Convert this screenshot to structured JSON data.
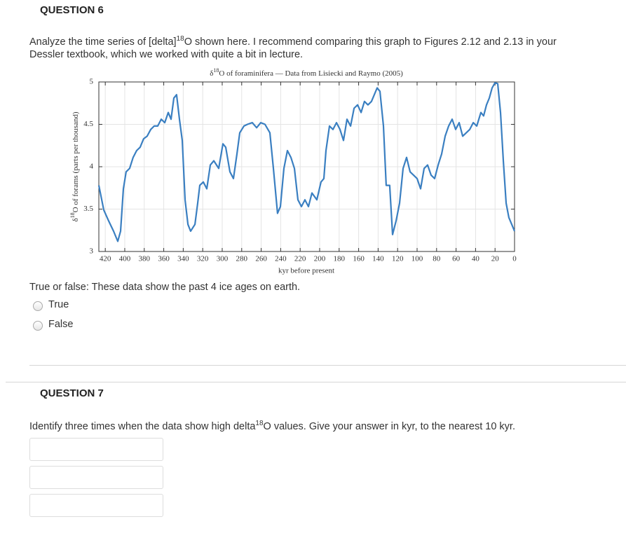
{
  "question6": {
    "heading": "QUESTION 6",
    "prompt_lead": "Analyze the time series of [delta]",
    "prompt_sup": "18",
    "prompt_rest": "O shown here.  I recommend comparing this graph to Figures 2.12 and 2.13 in your",
    "prompt_line2": "Dessler textbook, which we worked with quite a bit in lecture.",
    "statement": "True or false: These data show the past 4 ice ages on earth.",
    "options": [
      "True",
      "False"
    ]
  },
  "chart_data": {
    "type": "line",
    "title_parts": [
      "δ",
      "18",
      "O of foraminifera — Data from Lisiecki and Raymo (2005)"
    ],
    "ylabel_parts": [
      "δ",
      "18",
      "O of forams (parts per thousand)"
    ],
    "xlabel": "kyr before present",
    "color": "#3a7fc1",
    "grid": true,
    "xlim": [
      426.6,
      0
    ],
    "ylim": [
      3,
      5
    ],
    "xticks": [
      420,
      400,
      380,
      360,
      340,
      320,
      300,
      280,
      260,
      240,
      220,
      200,
      180,
      160,
      140,
      120,
      100,
      80,
      60,
      40,
      20,
      0
    ],
    "yticks": [
      3,
      3.5,
      4,
      4.5,
      5
    ],
    "x": [
      426.6,
      421.6,
      416.5,
      411.5,
      407.2,
      404.3,
      401.4,
      398.6,
      395,
      391.4,
      387.8,
      384.2,
      380.6,
      377,
      373.4,
      369.8,
      366.2,
      362.6,
      359,
      355.4,
      352.5,
      349.6,
      346.8,
      343.9,
      341,
      338.1,
      335.2,
      332.4,
      328,
      325.2,
      323,
      319.4,
      315.8,
      312.2,
      308.6,
      303.6,
      299.3,
      296.4,
      292.1,
      288.5,
      284.9,
      282,
      277.7,
      274.1,
      269.1,
      264.7,
      260.4,
      256.1,
      251.1,
      247.5,
      243.2,
      240.3,
      236.7,
      233.1,
      229.5,
      225.9,
      222.3,
      218.7,
      215.1,
      211.5,
      207.9,
      202.9,
      198.6,
      195.7,
      193.5,
      189.9,
      186.3,
      182.7,
      179.1,
      175.5,
      171.9,
      168.3,
      164.7,
      161.1,
      157.5,
      154,
      150.4,
      146.8,
      141,
      138.1,
      134.5,
      131.7,
      128.1,
      125.2,
      121.6,
      118,
      114.4,
      110.8,
      107.2,
      103.6,
      100,
      96.4,
      92.8,
      89.2,
      85.6,
      82,
      78.4,
      74.8,
      71.2,
      67.6,
      64,
      60.4,
      56.8,
      53.2,
      49.6,
      46,
      42.4,
      38.8,
      34.5,
      31.7,
      28.8,
      25.9,
      23,
      20.1,
      17.3,
      14.4,
      11.5,
      8.6,
      5.8,
      2.9,
      0
    ],
    "values": [
      3.78,
      3.49,
      3.36,
      3.24,
      3.12,
      3.24,
      3.74,
      3.94,
      3.98,
      4.11,
      4.19,
      4.23,
      4.33,
      4.36,
      4.44,
      4.48,
      4.48,
      4.56,
      4.52,
      4.64,
      4.56,
      4.81,
      4.85,
      4.56,
      4.31,
      3.61,
      3.32,
      3.24,
      3.32,
      3.57,
      3.78,
      3.82,
      3.74,
      4.02,
      4.07,
      3.98,
      4.27,
      4.23,
      3.94,
      3.86,
      4.15,
      4.4,
      4.48,
      4.5,
      4.52,
      4.46,
      4.52,
      4.5,
      4.4,
      3.98,
      3.45,
      3.53,
      3.98,
      4.19,
      4.11,
      3.98,
      3.61,
      3.53,
      3.61,
      3.53,
      3.69,
      3.61,
      3.82,
      3.86,
      4.19,
      4.48,
      4.44,
      4.52,
      4.44,
      4.31,
      4.56,
      4.48,
      4.69,
      4.73,
      4.64,
      4.77,
      4.73,
      4.77,
      4.93,
      4.89,
      4.48,
      3.78,
      3.78,
      3.2,
      3.36,
      3.57,
      3.98,
      4.11,
      3.94,
      3.9,
      3.86,
      3.74,
      3.98,
      4.02,
      3.9,
      3.86,
      4.02,
      4.15,
      4.36,
      4.48,
      4.56,
      4.44,
      4.52,
      4.36,
      4.4,
      4.44,
      4.52,
      4.48,
      4.64,
      4.6,
      4.73,
      4.81,
      4.93,
      4.99,
      4.98,
      4.64,
      4.07,
      3.57,
      3.4,
      3.32,
      3.24
    ]
  },
  "question7": {
    "heading": "QUESTION 7",
    "prompt_lead": "Identify three times when the data show high delta",
    "prompt_sup": "18",
    "prompt_rest": "O values.  Give your answer in kyr, to the nearest 10 kyr."
  }
}
